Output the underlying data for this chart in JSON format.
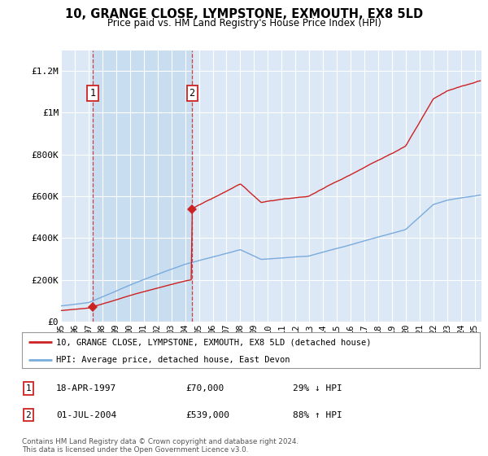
{
  "title": "10, GRANGE CLOSE, LYMPSTONE, EXMOUTH, EX8 5LD",
  "subtitle": "Price paid vs. HM Land Registry's House Price Index (HPI)",
  "legend_line1": "10, GRANGE CLOSE, LYMPSTONE, EXMOUTH, EX8 5LD (detached house)",
  "legend_line2": "HPI: Average price, detached house, East Devon",
  "footnote": "Contains HM Land Registry data © Crown copyright and database right 2024.\nThis data is licensed under the Open Government Licence v3.0.",
  "transaction1_date": "18-APR-1997",
  "transaction1_price": "£70,000",
  "transaction1_hpi": "29% ↓ HPI",
  "transaction2_date": "01-JUL-2004",
  "transaction2_price": "£539,000",
  "transaction2_hpi": "88% ↑ HPI",
  "xlim": [
    1995.0,
    2025.5
  ],
  "ylim": [
    0,
    1300000
  ],
  "yticks": [
    0,
    200000,
    400000,
    600000,
    800000,
    1000000,
    1200000
  ],
  "ytick_labels": [
    "£0",
    "£200K",
    "£400K",
    "£600K",
    "£800K",
    "£1M",
    "£1.2M"
  ],
  "xtick_years": [
    1995,
    1996,
    1997,
    1998,
    1999,
    2000,
    2001,
    2002,
    2003,
    2004,
    2005,
    2006,
    2007,
    2008,
    2009,
    2010,
    2011,
    2012,
    2013,
    2014,
    2015,
    2016,
    2017,
    2018,
    2019,
    2020,
    2021,
    2022,
    2023,
    2024,
    2025
  ],
  "transaction1_x": 1997.3,
  "transaction1_y": 70000,
  "transaction2_x": 2004.5,
  "transaction2_y": 539000,
  "background_color": "#ffffff",
  "plot_bg_color": "#dce8f5",
  "shade_color": "#c8ddf0",
  "grid_color": "#ffffff",
  "red_color": "#cc2222",
  "blue_color": "#7aabdd"
}
